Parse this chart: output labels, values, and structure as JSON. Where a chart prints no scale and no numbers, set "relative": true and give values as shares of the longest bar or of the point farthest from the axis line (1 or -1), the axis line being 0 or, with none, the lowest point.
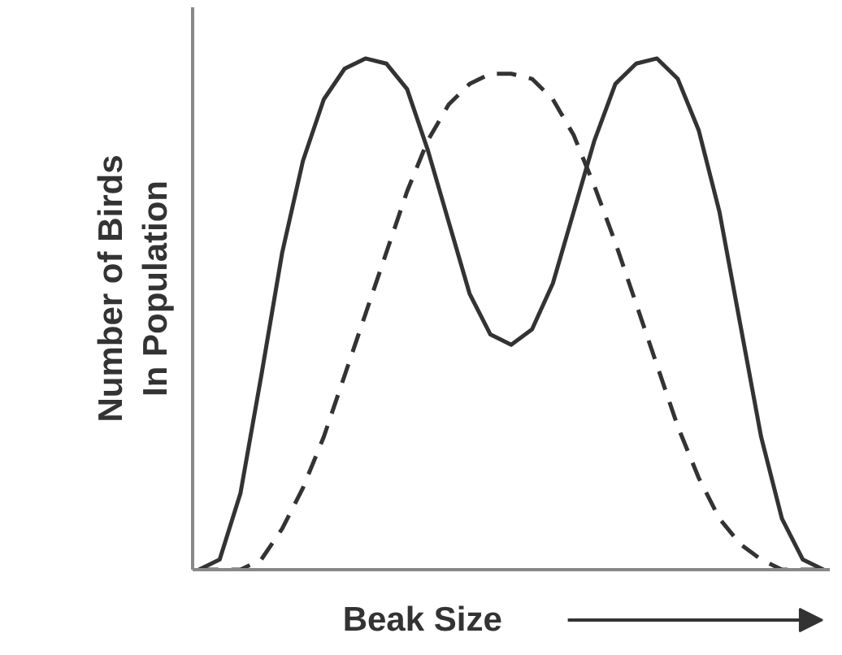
{
  "chart_data": {
    "type": "line",
    "relative": true,
    "xlabel": "Beak Size",
    "ylabel": "Number of Birds\nIn Population",
    "categories": [
      null,
      null,
      null,
      null,
      null,
      null,
      null,
      null,
      null,
      null,
      null,
      null,
      null,
      null,
      null,
      null,
      null,
      null,
      null,
      null,
      null,
      null,
      null,
      null,
      null,
      null,
      null,
      null,
      null,
      null,
      null
    ],
    "series": [
      {
        "color": "#333333",
        "line_style": "solid",
        "values": [
          0,
          0.02,
          0.15,
          0.38,
          0.62,
          0.8,
          0.92,
          0.98,
          1.0,
          0.99,
          0.94,
          0.82,
          0.68,
          0.54,
          0.46,
          0.44,
          0.47,
          0.56,
          0.7,
          0.84,
          0.95,
          0.99,
          1.0,
          0.96,
          0.86,
          0.7,
          0.48,
          0.26,
          0.1,
          0.02,
          0
        ]
      },
      {
        "color": "#333333",
        "line_style": "dashed",
        "values": [
          0,
          0,
          0,
          0.02,
          0.08,
          0.16,
          0.26,
          0.38,
          0.5,
          0.62,
          0.74,
          0.84,
          0.91,
          0.95,
          0.97,
          0.97,
          0.96,
          0.92,
          0.85,
          0.75,
          0.64,
          0.52,
          0.4,
          0.28,
          0.18,
          0.1,
          0.05,
          0.02,
          0,
          0,
          0
        ]
      }
    ]
  }
}
